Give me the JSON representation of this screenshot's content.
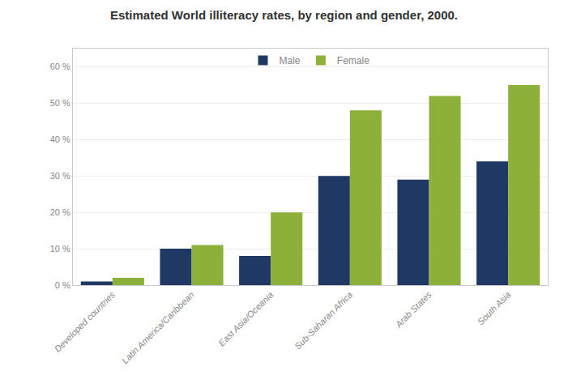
{
  "chart_data": {
    "type": "bar",
    "title": "Estimated World illiteracy rates, by region and gender, 2000.",
    "categories": [
      "Developed countries",
      "Latin America/Caribbean",
      "East Asia/Oceania",
      "Sub-Saharan Africa",
      "Arab States",
      "South Asia"
    ],
    "series": [
      {
        "name": "Male",
        "color": "#1f3864",
        "values": [
          1,
          10,
          8,
          30,
          29,
          34
        ]
      },
      {
        "name": "Female",
        "color": "#8db03a",
        "values": [
          2,
          11,
          20,
          48,
          52,
          55
        ]
      }
    ],
    "ylim": [
      0,
      65
    ],
    "yticks": [
      {
        "value": 0,
        "label": "0 %"
      },
      {
        "value": 10,
        "label": "10 %"
      },
      {
        "value": 20,
        "label": "20 %"
      },
      {
        "value": 30,
        "label": "30 %"
      },
      {
        "value": 40,
        "label": "40 %"
      },
      {
        "value": 50,
        "label": "50 %"
      },
      {
        "value": 60,
        "label": "60 %"
      }
    ],
    "grid": true,
    "legend": "top"
  }
}
